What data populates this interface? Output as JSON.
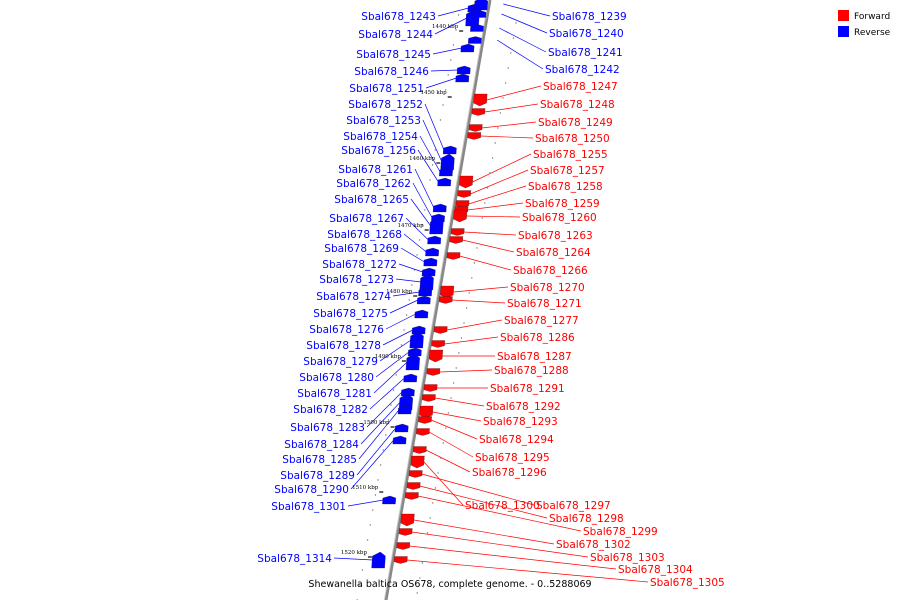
{
  "colors": {
    "forward": "#ff0000",
    "reverse": "#0000ff",
    "backbone": "#888888"
  },
  "legend": [
    {
      "label": "Forward",
      "strand": "forward"
    },
    {
      "label": "Reverse",
      "strand": "reverse"
    }
  ],
  "caption": "Shewanella baltica OS678, complete genome. - 0..5288069",
  "scale_ticks": [
    "1440 kbp",
    "1450 kbp",
    "1460 kbp",
    "1470 kbp",
    "1480 kbp",
    "1490 kbp",
    "1500 kbp",
    "1510 kbp",
    "1520 kbp"
  ],
  "genes_left": [
    {
      "name": "Sbal678_1243",
      "strand": "reverse"
    },
    {
      "name": "Sbal678_1244",
      "strand": "reverse"
    },
    {
      "name": "Sbal678_1245",
      "strand": "reverse"
    },
    {
      "name": "Sbal678_1246",
      "strand": "reverse"
    },
    {
      "name": "Sbal678_1251",
      "strand": "reverse"
    },
    {
      "name": "Sbal678_1252",
      "strand": "reverse"
    },
    {
      "name": "Sbal678_1253",
      "strand": "reverse"
    },
    {
      "name": "Sbal678_1254",
      "strand": "reverse"
    },
    {
      "name": "Sbal678_1256",
      "strand": "reverse"
    },
    {
      "name": "Sbal678_1261",
      "strand": "reverse"
    },
    {
      "name": "Sbal678_1262",
      "strand": "reverse"
    },
    {
      "name": "Sbal678_1265",
      "strand": "reverse"
    },
    {
      "name": "Sbal678_1267",
      "strand": "reverse"
    },
    {
      "name": "Sbal678_1268",
      "strand": "reverse"
    },
    {
      "name": "Sbal678_1269",
      "strand": "reverse"
    },
    {
      "name": "Sbal678_1272",
      "strand": "reverse"
    },
    {
      "name": "Sbal678_1273",
      "strand": "reverse"
    },
    {
      "name": "Sbal678_1274",
      "strand": "reverse"
    },
    {
      "name": "Sbal678_1275",
      "strand": "reverse"
    },
    {
      "name": "Sbal678_1276",
      "strand": "reverse"
    },
    {
      "name": "Sbal678_1278",
      "strand": "reverse"
    },
    {
      "name": "Sbal678_1279",
      "strand": "reverse"
    },
    {
      "name": "Sbal678_1280",
      "strand": "reverse"
    },
    {
      "name": "Sbal678_1281",
      "strand": "reverse"
    },
    {
      "name": "Sbal678_1282",
      "strand": "reverse"
    },
    {
      "name": "Sbal678_1283",
      "strand": "reverse"
    },
    {
      "name": "Sbal678_1284",
      "strand": "reverse"
    },
    {
      "name": "Sbal678_1285",
      "strand": "reverse"
    },
    {
      "name": "Sbal678_1289",
      "strand": "reverse"
    },
    {
      "name": "Sbal678_1290",
      "strand": "reverse"
    },
    {
      "name": "Sbal678_1301",
      "strand": "reverse"
    },
    {
      "name": "Sbal678_1314",
      "strand": "reverse"
    }
  ],
  "genes_right": [
    {
      "name": "Sbal678_1239",
      "strand": "reverse"
    },
    {
      "name": "Sbal678_1240",
      "strand": "reverse"
    },
    {
      "name": "Sbal678_1241",
      "strand": "reverse"
    },
    {
      "name": "Sbal678_1242",
      "strand": "reverse"
    },
    {
      "name": "Sbal678_1247",
      "strand": "forward"
    },
    {
      "name": "Sbal678_1248",
      "strand": "forward"
    },
    {
      "name": "Sbal678_1249",
      "strand": "forward"
    },
    {
      "name": "Sbal678_1250",
      "strand": "forward"
    },
    {
      "name": "Sbal678_1255",
      "strand": "forward"
    },
    {
      "name": "Sbal678_1257",
      "strand": "forward"
    },
    {
      "name": "Sbal678_1258",
      "strand": "forward"
    },
    {
      "name": "Sbal678_1259",
      "strand": "forward"
    },
    {
      "name": "Sbal678_1260",
      "strand": "forward"
    },
    {
      "name": "Sbal678_1263",
      "strand": "forward"
    },
    {
      "name": "Sbal678_1264",
      "strand": "forward"
    },
    {
      "name": "Sbal678_1266",
      "strand": "forward"
    },
    {
      "name": "Sbal678_1270",
      "strand": "forward"
    },
    {
      "name": "Sbal678_1271",
      "strand": "forward"
    },
    {
      "name": "Sbal678_1277",
      "strand": "forward"
    },
    {
      "name": "Sbal678_1286",
      "strand": "forward"
    },
    {
      "name": "Sbal678_1287",
      "strand": "forward"
    },
    {
      "name": "Sbal678_1288",
      "strand": "forward"
    },
    {
      "name": "Sbal678_1291",
      "strand": "forward"
    },
    {
      "name": "Sbal678_1292",
      "strand": "forward"
    },
    {
      "name": "Sbal678_1293",
      "strand": "forward"
    },
    {
      "name": "Sbal678_1294",
      "strand": "forward"
    },
    {
      "name": "Sbal678_1295",
      "strand": "forward"
    },
    {
      "name": "Sbal678_1296",
      "strand": "forward"
    },
    {
      "name": "Sbal678_1300",
      "strand": "forward"
    },
    {
      "name": "Sbal678_1297",
      "strand": "forward"
    },
    {
      "name": "Sbal678_1298",
      "strand": "forward"
    },
    {
      "name": "Sbal678_1299",
      "strand": "forward"
    },
    {
      "name": "Sbal678_1302",
      "strand": "forward"
    },
    {
      "name": "Sbal678_1303",
      "strand": "forward"
    },
    {
      "name": "Sbal678_1304",
      "strand": "forward"
    },
    {
      "name": "Sbal678_1305",
      "strand": "forward"
    }
  ]
}
